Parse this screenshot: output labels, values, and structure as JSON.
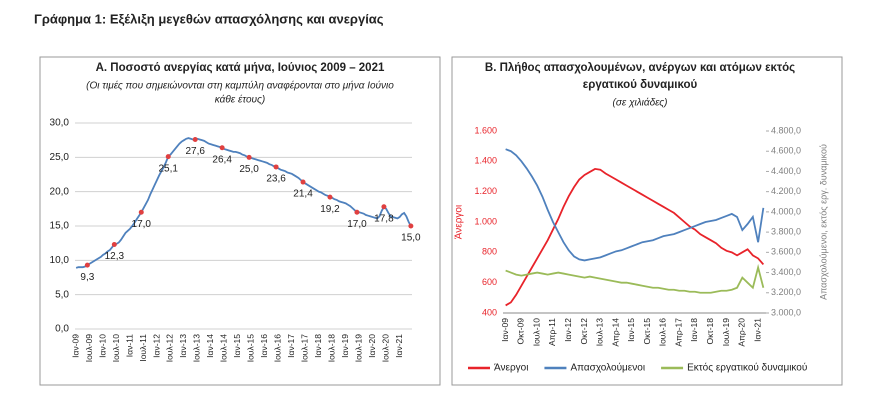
{
  "page_title": "Γράφημα 1: Εξέλιξη μεγεθών απασχόλησης και ανεργίας",
  "chart_data": [
    {
      "type": "line",
      "title": "Α. Ποσοστό ανεργίας κατά μήνα, Ιούνιος 2009 – 2021",
      "subtitle": [
        "(Οι τιμές που σημειώνονται στη καμπύλη αναφέρονται στο μήνα Ιούνιο",
        "κάθε έτους)"
      ],
      "categories": [
        "Ιαν-09",
        null,
        null,
        null,
        null,
        null,
        "Ιουλ-09",
        null,
        null,
        null,
        null,
        null,
        "Ιαν-10",
        null,
        null,
        null,
        null,
        null,
        "Ιουλ-10",
        null,
        null,
        null,
        null,
        null,
        "Ιαν-11",
        null,
        null,
        null,
        null,
        null,
        "Ιουλ-11",
        null,
        null,
        null,
        null,
        null,
        "Ιαν-12",
        null,
        null,
        null,
        null,
        null,
        "Ιουλ-12",
        null,
        null,
        null,
        null,
        null,
        "Ιαν-13",
        null,
        null,
        null,
        null,
        null,
        "Ιουλ-13",
        null,
        null,
        null,
        null,
        null,
        "Ιαν-14",
        null,
        null,
        null,
        null,
        null,
        "Ιουλ-14",
        null,
        null,
        null,
        null,
        null,
        "Ιαν-15",
        null,
        null,
        null,
        null,
        null,
        "Ιουλ-15",
        null,
        null,
        null,
        null,
        null,
        "Ιαν-16",
        null,
        null,
        null,
        null,
        null,
        "Ιουλ-16",
        null,
        null,
        null,
        null,
        null,
        "Ιαν-17",
        null,
        null,
        null,
        null,
        null,
        "Ιουλ-17",
        null,
        null,
        null,
        null,
        null,
        "Ιαν-18",
        null,
        null,
        null,
        null,
        null,
        "Ιουλ-18",
        null,
        null,
        null,
        null,
        null,
        "Ιαν-19",
        null,
        null,
        null,
        null,
        null,
        "Ιουλ-19",
        null,
        null,
        null,
        null,
        null,
        "Ιαν-20",
        null,
        null,
        null,
        null,
        null,
        "Ιουλ-20",
        null,
        null,
        null,
        null,
        null,
        "Ιαν-21",
        null,
        null,
        null,
        null,
        null
      ],
      "values": [
        8.9,
        9.0,
        9.0,
        9.0,
        9.1,
        9.3,
        9.5,
        9.7,
        9.9,
        10.1,
        10.3,
        10.5,
        10.8,
        11.0,
        11.3,
        11.5,
        11.9,
        12.3,
        12.4,
        12.6,
        13.0,
        13.5,
        14.0,
        14.3,
        14.6,
        15.0,
        15.5,
        16.0,
        16.5,
        17.0,
        17.6,
        18.2,
        18.8,
        19.6,
        20.3,
        21.0,
        21.7,
        22.4,
        23.0,
        23.6,
        24.3,
        25.1,
        25.4,
        25.8,
        26.2,
        26.6,
        27.0,
        27.3,
        27.5,
        27.7,
        27.8,
        27.7,
        27.6,
        27.6,
        27.7,
        27.6,
        27.5,
        27.4,
        27.2,
        27.0,
        26.9,
        26.8,
        26.7,
        26.6,
        26.5,
        26.4,
        26.2,
        26.1,
        26.0,
        25.9,
        25.8,
        25.8,
        25.7,
        25.6,
        25.4,
        25.3,
        25.1,
        25.0,
        24.9,
        24.8,
        24.7,
        24.6,
        24.5,
        24.4,
        24.3,
        24.2,
        24.0,
        23.9,
        23.7,
        23.6,
        23.4,
        23.2,
        23.1,
        23.0,
        22.8,
        22.7,
        22.6,
        22.4,
        22.2,
        22.0,
        21.7,
        21.4,
        21.2,
        21.0,
        20.8,
        20.6,
        20.4,
        20.2,
        20.0,
        19.9,
        19.7,
        19.5,
        19.4,
        19.2,
        19.1,
        18.9,
        18.8,
        18.6,
        18.5,
        18.4,
        18.3,
        18.1,
        17.9,
        17.6,
        17.3,
        17.0,
        17.0,
        16.9,
        16.8,
        16.6,
        16.5,
        16.4,
        16.3,
        16.2,
        16.1,
        16.4,
        17.2,
        17.8,
        17.5,
        16.9,
        16.4,
        16.3,
        16.2,
        16.1,
        16.3,
        16.7,
        16.9,
        16.4,
        15.6,
        15.0
      ],
      "value_labels": [
        null,
        null,
        null,
        null,
        null,
        "9,3",
        null,
        null,
        null,
        null,
        null,
        null,
        null,
        null,
        null,
        null,
        null,
        "12,3",
        null,
        null,
        null,
        null,
        null,
        null,
        null,
        null,
        null,
        null,
        null,
        "17,0",
        null,
        null,
        null,
        null,
        null,
        null,
        null,
        null,
        null,
        null,
        null,
        "25,1",
        null,
        null,
        null,
        null,
        null,
        null,
        null,
        null,
        null,
        null,
        null,
        "27,6",
        null,
        null,
        null,
        null,
        null,
        null,
        null,
        null,
        null,
        null,
        null,
        "26,4",
        null,
        null,
        null,
        null,
        null,
        null,
        null,
        null,
        null,
        null,
        null,
        "25,0",
        null,
        null,
        null,
        null,
        null,
        null,
        null,
        null,
        null,
        null,
        null,
        "23,6",
        null,
        null,
        null,
        null,
        null,
        null,
        null,
        null,
        null,
        null,
        null,
        "21,4",
        null,
        null,
        null,
        null,
        null,
        null,
        null,
        null,
        null,
        null,
        null,
        "19,2",
        null,
        null,
        null,
        null,
        null,
        null,
        null,
        null,
        null,
        null,
        null,
        "17,0",
        null,
        null,
        null,
        null,
        null,
        null,
        null,
        null,
        null,
        null,
        null,
        "17,8",
        null,
        null,
        null,
        null,
        null,
        null,
        null,
        null,
        null,
        null,
        null,
        "15,0"
      ],
      "color": "#4f81bd",
      "marker_color": "#e04040",
      "ylim": [
        0,
        30
      ],
      "yticks": [
        {
          "value": 0,
          "label": "0,0"
        },
        {
          "value": 5,
          "label": "5,0"
        },
        {
          "value": 10,
          "label": "10,0"
        },
        {
          "value": 15,
          "label": "15,0"
        },
        {
          "value": 20,
          "label": "20,0"
        },
        {
          "value": 25,
          "label": "25,0"
        },
        {
          "value": 30,
          "label": "30,0"
        }
      ],
      "grid": true
    },
    {
      "type": "line",
      "title": [
        "Β. Πλήθος απασχολουμένων, ανέργων και ατόμων εκτός",
        "εργατικού δυναμικού"
      ],
      "subtitle": "(σε χιλιάδες)",
      "y_label": "Άνεργοι",
      "y2_label": "Απασχολούμενοι, εκτός εργ. δυναμικού",
      "categories": [
        "Ιαν-09",
        null,
        null,
        "Οκτ-09",
        null,
        null,
        "Ιουλ-10",
        null,
        null,
        "Απρ-11",
        null,
        null,
        "Ιαν-12",
        null,
        null,
        "Οκτ-12",
        null,
        null,
        "Ιουλ-13",
        null,
        null,
        "Απρ-14",
        null,
        null,
        "Ιαν-15",
        null,
        null,
        "Οκτ-15",
        null,
        null,
        "Ιουλ-16",
        null,
        null,
        "Απρ-17",
        null,
        null,
        "Ιαν-18",
        null,
        null,
        "Οκτ-18",
        null,
        null,
        "Ιουλ-19",
        null,
        null,
        "Απρ-20",
        null,
        null,
        "Ιαν-21",
        null
      ],
      "series": [
        {
          "name": "Άνεργοι",
          "color": "#e8232a",
          "values": [
            450,
            470,
            520,
            580,
            640,
            700,
            760,
            820,
            880,
            950,
            1020,
            1100,
            1170,
            1230,
            1280,
            1310,
            1330,
            1350,
            1345,
            1320,
            1300,
            1280,
            1260,
            1240,
            1220,
            1200,
            1180,
            1160,
            1140,
            1120,
            1100,
            1080,
            1060,
            1030,
            1000,
            970,
            950,
            920,
            900,
            880,
            860,
            830,
            810,
            800,
            780,
            800,
            820,
            780,
            760,
            720
          ]
        },
        {
          "name": "Απασχολούμενοι",
          "color": "#4f81bd",
          "axis": "y2",
          "values": [
            4620,
            4600,
            4560,
            4500,
            4430,
            4350,
            4260,
            4150,
            4020,
            3900,
            3800,
            3700,
            3620,
            3560,
            3530,
            3520,
            3530,
            3540,
            3550,
            3570,
            3590,
            3610,
            3620,
            3640,
            3660,
            3680,
            3700,
            3710,
            3720,
            3740,
            3760,
            3770,
            3780,
            3800,
            3820,
            3840,
            3860,
            3880,
            3900,
            3910,
            3920,
            3940,
            3960,
            3980,
            3950,
            3820,
            3880,
            3950,
            3700,
            4040
          ]
        },
        {
          "name": "Εκτός εργατικού δυναμικού",
          "color": "#9bbb59",
          "axis": "y2",
          "values": [
            3420,
            3400,
            3380,
            3370,
            3380,
            3390,
            3400,
            3390,
            3380,
            3390,
            3400,
            3390,
            3380,
            3370,
            3360,
            3350,
            3360,
            3350,
            3340,
            3330,
            3320,
            3310,
            3300,
            3300,
            3290,
            3280,
            3270,
            3260,
            3250,
            3250,
            3240,
            3230,
            3230,
            3220,
            3220,
            3210,
            3210,
            3200,
            3200,
            3200,
            3210,
            3220,
            3220,
            3230,
            3250,
            3350,
            3300,
            3250,
            3450,
            3250
          ]
        }
      ],
      "ylim": [
        400,
        1600
      ],
      "yticks": [
        400,
        600,
        800,
        {
          "value": 1000,
          "label": "1.000"
        },
        {
          "value": 1200,
          "label": "1.200"
        },
        {
          "value": 1400,
          "label": "1.400"
        },
        {
          "value": 1600,
          "label": "1.600"
        }
      ],
      "y2lim": [
        3000,
        4800
      ],
      "y2ticks": [
        {
          "value": 3000,
          "label": "3.000,0"
        },
        {
          "value": 3200,
          "label": "3.200,0"
        },
        {
          "value": 3400,
          "label": "3.400,0"
        },
        {
          "value": 3600,
          "label": "3.600,0"
        },
        {
          "value": 3800,
          "label": "3.800,0"
        },
        {
          "value": 4000,
          "label": "4.000,0"
        },
        {
          "value": 4200,
          "label": "4.200,0"
        },
        {
          "value": 4400,
          "label": "4.400,0"
        },
        {
          "value": 4600,
          "label": "4.600,0"
        },
        {
          "value": 4800,
          "label": "4.800,0"
        }
      ],
      "grid": false,
      "y_label_color": "#e8232a",
      "y2_label_color": "#7f7f7f",
      "legend": "bottom"
    }
  ]
}
